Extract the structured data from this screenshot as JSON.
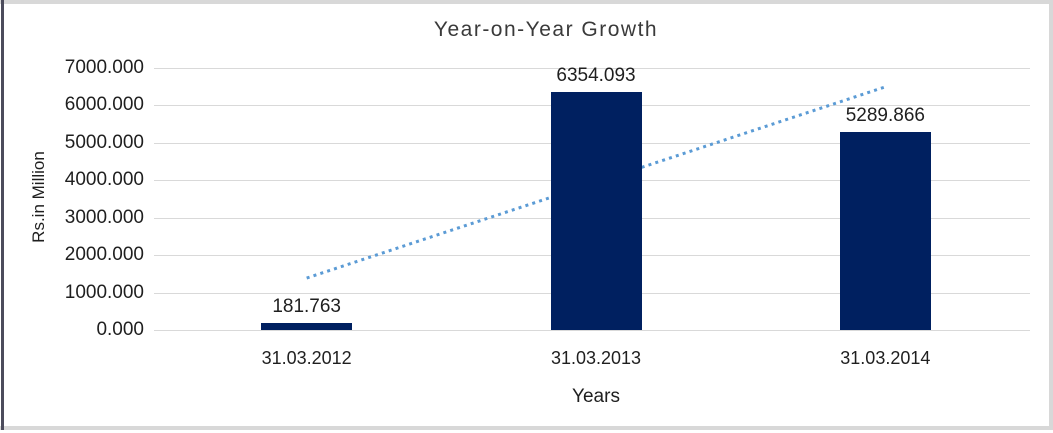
{
  "chart": {
    "title": "Year-on-Year Growth",
    "x_axis_title": "Years",
    "y_axis_title": "Rs.in Million"
  },
  "chart_data": {
    "type": "bar",
    "title": "Year-on-Year Growth",
    "xlabel": "Years",
    "ylabel": "Rs.in Million",
    "categories": [
      "31.03.2012",
      "31.03.2013",
      "31.03.2014"
    ],
    "values": [
      181.763,
      6354.093,
      5289.866
    ],
    "data_labels": [
      "181.763",
      "6354.093",
      "5289.866"
    ],
    "ylim": [
      0,
      7000
    ],
    "ytick_interval": 1000,
    "ytick_labels": [
      "0.000",
      "1000.000",
      "2000.000",
      "3000.000",
      "4000.000",
      "5000.000",
      "6000.000",
      "7000.000"
    ],
    "grid": true,
    "legend": false,
    "trendline": {
      "type": "linear",
      "style": "dotted",
      "endpoint_values": [
        1387.86,
        6495.96
      ]
    },
    "colors": {
      "bar": "#002060",
      "trendline": "#5B9BD5",
      "gridline": "#D9D9D9",
      "label_text": "#1F1F1F"
    }
  }
}
